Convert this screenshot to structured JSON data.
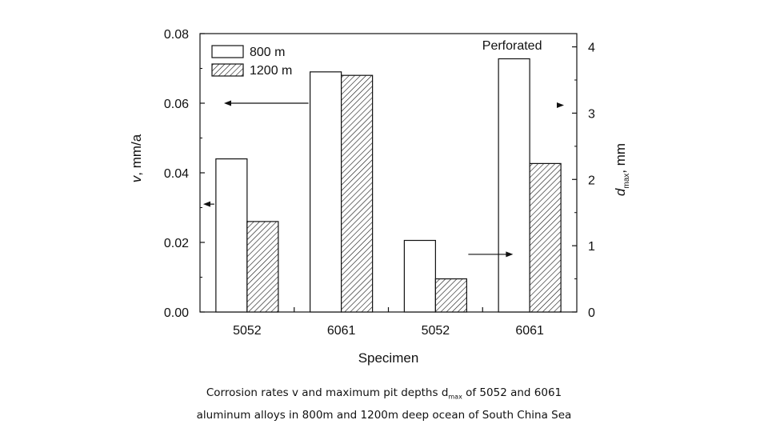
{
  "chart_data": {
    "type": "bar",
    "categories": [
      "5052",
      "6061",
      "5052",
      "6061"
    ],
    "xlabel": "Specimen",
    "ylabel_left": {
      "main": "v",
      "rest": ", mm/a"
    },
    "ylabel_right": {
      "main": "d",
      "sub": "max",
      "rest": ", mm"
    },
    "ylim_left": [
      0,
      0.08
    ],
    "ylim_right": [
      0,
      4.2
    ],
    "yticks_left": [
      "0.00",
      "0.02",
      "0.04",
      "0.06",
      "0.08"
    ],
    "yticks_right": [
      "0",
      "1",
      "2",
      "3",
      "4"
    ],
    "series": [
      {
        "name": "800 m",
        "pattern": "open",
        "axes": [
          "left",
          "left",
          "right",
          "right"
        ],
        "values": [
          0.044,
          0.069,
          1.08,
          3.82
        ]
      },
      {
        "name": "1200 m",
        "pattern": "hatched",
        "axes": [
          "left",
          "left",
          "right",
          "right"
        ],
        "values": [
          0.026,
          0.068,
          0.5,
          2.24
        ]
      }
    ],
    "annotations": [
      {
        "text": "Perforated",
        "category_index": 3
      }
    ],
    "arrows": [
      {
        "category_index": 0,
        "direction": "left",
        "axis": "left",
        "value": 0.031
      },
      {
        "category_index": 1,
        "direction": "left",
        "axis": "left",
        "value": 0.06
      },
      {
        "category_index": 2,
        "direction": "right",
        "axis": "right",
        "value": 0.87
      },
      {
        "category_index": 3,
        "direction": "right",
        "axis": "right",
        "value": 3.12
      }
    ],
    "legend": "top-left",
    "grid": false
  },
  "caption": {
    "part1": "Corrosion rates v and maximum pit depths d",
    "sub": "max",
    "part2": " of 5052 and 6061",
    "line2": "aluminum alloys in 800m and 1200m deep ocean of South China Sea"
  }
}
